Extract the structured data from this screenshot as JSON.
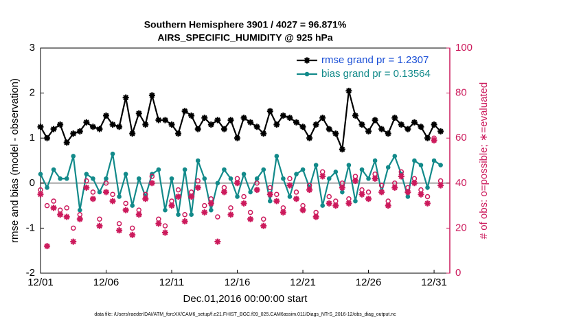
{
  "chart_data": {
    "type": "line",
    "title": "Southern Hemisphere 3901 / 4027 = 96.871%",
    "subtitle": "AIRS_SPECIFIC_HUMIDITY @ 925 hPa",
    "ylabel": "rmse and bias (model - observation)",
    "y2label": "# of obs: o=possible; ∗=evaluated",
    "xlabel": "Dec.01,2016 00:00:00 start",
    "footnote": "data file: /Users/raeder/DAI/ATM_forcXX/CAM6_setup/f.e21.FHIST_BGC.f09_025.CAM6assim.011/Diags_NTrS_2016-12/obs_diag_output.nc",
    "xlim": [
      0,
      31.2
    ],
    "xticks": [
      {
        "value": 0,
        "label": "12/01"
      },
      {
        "value": 5,
        "label": "12/06"
      },
      {
        "value": 10,
        "label": "12/11"
      },
      {
        "value": 15,
        "label": "12/16"
      },
      {
        "value": 20,
        "label": "12/21"
      },
      {
        "value": 25,
        "label": "12/26"
      },
      {
        "value": 30,
        "label": "12/31"
      }
    ],
    "ylim": [
      -2,
      3
    ],
    "yticks": [
      -2,
      -1,
      0,
      1,
      2,
      3
    ],
    "y2lim": [
      0,
      100
    ],
    "y2ticks": [
      0,
      20,
      40,
      60,
      80,
      100
    ],
    "y2color": "#cc1a5c",
    "legend": "upper right",
    "x": [
      0,
      0.5,
      1,
      1.5,
      2,
      2.5,
      3,
      3.5,
      4,
      4.5,
      5,
      5.5,
      6,
      6.5,
      7,
      7.5,
      8,
      8.5,
      9,
      9.5,
      10,
      10.5,
      11,
      11.5,
      12,
      12.5,
      13,
      13.5,
      14,
      14.5,
      15,
      15.5,
      16,
      16.5,
      17,
      17.5,
      18,
      18.5,
      19,
      19.5,
      20,
      20.5,
      21,
      21.5,
      22,
      22.5,
      23,
      23.5,
      24,
      24.5,
      25,
      25.5,
      26,
      26.5,
      27,
      27.5,
      28,
      28.5,
      29,
      29.5,
      30,
      30.5
    ],
    "series": [
      {
        "name": "rmse grand pr = 1.2307",
        "color": "#000000",
        "marker": "star",
        "line": true,
        "values": [
          1.25,
          1.0,
          1.2,
          1.3,
          0.9,
          1.1,
          1.15,
          1.35,
          1.25,
          1.2,
          1.5,
          1.3,
          1.25,
          1.9,
          1.1,
          1.55,
          1.3,
          1.95,
          1.4,
          1.4,
          1.3,
          1.1,
          1.6,
          1.5,
          1.2,
          1.45,
          1.3,
          1.4,
          1.2,
          1.4,
          1.0,
          1.45,
          1.35,
          1.25,
          1.1,
          1.6,
          1.3,
          1.5,
          1.45,
          1.35,
          1.25,
          1.0,
          1.3,
          1.45,
          1.2,
          1.1,
          0.75,
          2.05,
          1.5,
          1.3,
          1.15,
          1.4,
          1.2,
          1.1,
          1.45,
          1.3,
          1.2,
          1.35,
          1.25,
          1.0,
          1.3,
          1.15
        ]
      },
      {
        "name": "bias grand pr = 0.13564",
        "color": "#128a8a",
        "marker": "circle",
        "line": true,
        "values": [
          0.2,
          -0.1,
          0.3,
          0.1,
          0.1,
          0.6,
          -0.6,
          0.2,
          0.1,
          -0.2,
          0.1,
          0.65,
          -0.3,
          0.2,
          -0.5,
          0.1,
          -0.3,
          0.2,
          0.3,
          -0.6,
          0.1,
          -0.7,
          0.3,
          -0.7,
          0.5,
          0.1,
          -0.6,
          0.0,
          0.3,
          0.1,
          -0.3,
          0.2,
          -0.2,
          0.1,
          0.3,
          -0.4,
          0.6,
          0.1,
          -0.3,
          0.2,
          0.3,
          -0.1,
          0.4,
          -0.5,
          0.1,
          0.25,
          -0.2,
          0.4,
          -0.4,
          0.3,
          0.1,
          0.5,
          -0.2,
          0.35,
          0.6,
          0.2,
          -0.3,
          0.5,
          0.4,
          -0.1,
          0.5,
          0.4
        ]
      },
      {
        "color": "#cc1a5c",
        "marker": "open-circle",
        "line": false,
        "axis": "y2",
        "values": [
          37,
          30,
          32,
          28,
          29,
          20,
          26,
          41,
          36,
          24,
          40,
          35,
          22,
          31,
          20,
          28,
          35,
          43,
          24,
          21,
          32,
          37,
          26,
          36,
          41,
          30,
          33,
          25,
          38,
          29,
          42,
          34,
          27,
          40,
          24,
          38,
          35,
          29,
          42,
          36,
          30,
          39,
          27,
          45,
          34,
          32,
          40,
          33,
          43,
          37,
          36,
          44,
          39,
          32,
          40,
          45,
          38,
          42,
          37,
          34,
          60,
          41
        ]
      },
      {
        "color": "#cc1a5c",
        "marker": "star",
        "line": false,
        "axis": "y2",
        "values": [
          35,
          12,
          29,
          26,
          25,
          14,
          24,
          38,
          33,
          21,
          36,
          32,
          19,
          28,
          17,
          26,
          33,
          40,
          22,
          18,
          30,
          34,
          23,
          34,
          38,
          27,
          31,
          14,
          36,
          26,
          40,
          31,
          24,
          37,
          21,
          35,
          32,
          27,
          39,
          33,
          28,
          37,
          25,
          43,
          31,
          30,
          38,
          31,
          41,
          35,
          33,
          42,
          36,
          30,
          38,
          43,
          36,
          40,
          35,
          31,
          59,
          39
        ]
      }
    ]
  }
}
